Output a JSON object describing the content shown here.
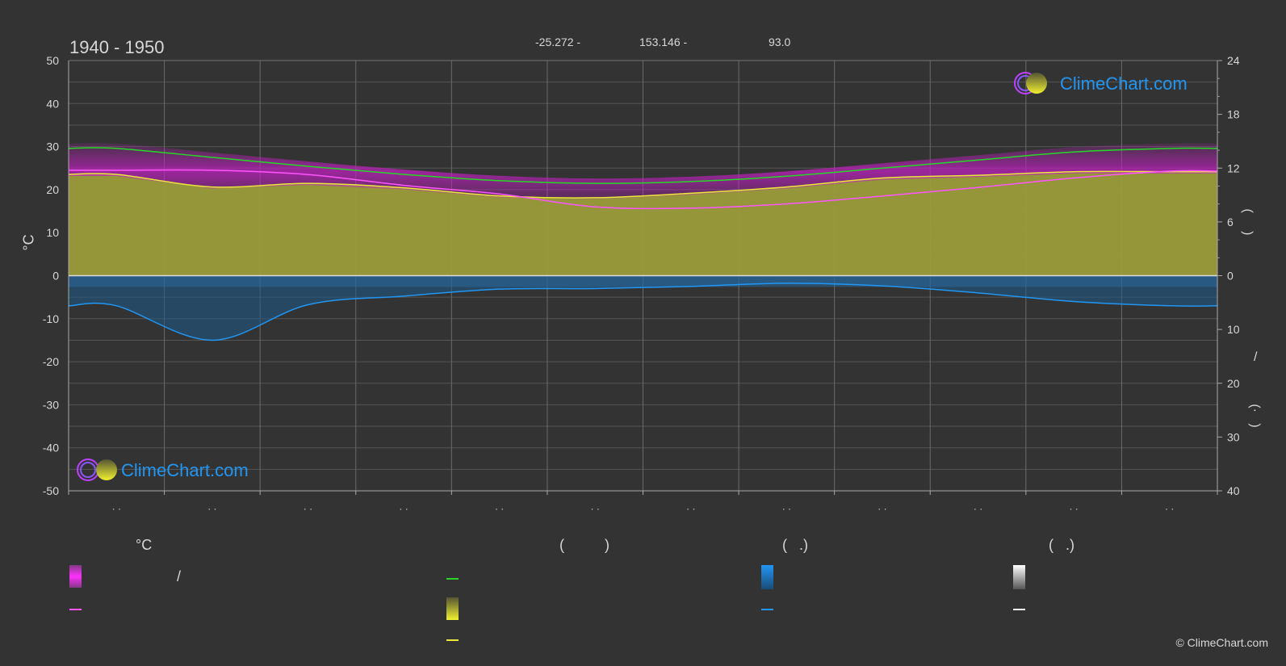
{
  "header": {
    "period": "1940 - 1950",
    "lat": "-25.272 -",
    "lon": "153.146 -",
    "elev": "93.0"
  },
  "axes": {
    "left_unit": "°C",
    "left_ticks": [
      "50",
      "40",
      "30",
      "20",
      "10",
      "0",
      "-10",
      "-20",
      "-30",
      "-40",
      "-50"
    ],
    "right_top_ticks": [
      "24",
      "18",
      "12",
      "6",
      "0"
    ],
    "right_bottom_ticks": [
      "10",
      "20",
      "30",
      "40"
    ],
    "right_top_label": "(     )",
    "right_bottom_label": "/",
    "right_bottom_label2": "(·   )",
    "month_labels": [
      "· ·",
      "· ·",
      "· ·",
      "· ·",
      "· ·",
      "· ·",
      "· ·",
      "· ·",
      "· ·",
      "· ·",
      "· ·",
      "· ·"
    ]
  },
  "brand": {
    "name": "ClimeChart.com",
    "copyright": "© ClimeChart.com",
    "color": "#2196f3"
  },
  "legend": {
    "col1_head": "°C",
    "col1_item1": "/",
    "col2_head": "(          )",
    "col3_head": "(   .)",
    "col4_head": "(   .)"
  },
  "colors": {
    "max_temp": "#ff55ff",
    "daylight": "#27d827",
    "sunshine": "#e9e93a",
    "precip": "#2196f3",
    "temp_band": "#c020c0",
    "sun_fill": "#9b9b3a"
  },
  "chart_data": {
    "type": "area",
    "x": [
      "Jan",
      "Feb",
      "Mar",
      "Apr",
      "May",
      "Jun",
      "Jul",
      "Aug",
      "Sep",
      "Oct",
      "Nov",
      "Dec"
    ],
    "ylim": [
      -50,
      50
    ],
    "y2_sun_lim": [
      0,
      24
    ],
    "y2_precip_lim": [
      0,
      40
    ],
    "series": [
      {
        "key": "daylight",
        "axis": "sun_hours",
        "values": [
          14.2,
          13.2,
          12.2,
          11.3,
          10.6,
          10.3,
          10.5,
          11.1,
          12.0,
          12.9,
          13.8,
          14.2
        ]
      },
      {
        "key": "sunshine",
        "axis": "sun_hours",
        "values": [
          11.3,
          9.9,
          10.3,
          9.8,
          8.9,
          8.7,
          9.2,
          9.9,
          10.9,
          11.2,
          11.6,
          11.6
        ]
      },
      {
        "key": "max_temp",
        "axis": "temperature",
        "values": [
          24.5,
          24.5,
          23.5,
          21.0,
          19.0,
          16.0,
          15.7,
          16.7,
          18.5,
          20.5,
          22.7,
          24.3
        ]
      },
      {
        "key": "precip",
        "axis": "precip_mm",
        "values": [
          5.6,
          12.0,
          5.4,
          3.8,
          2.5,
          2.4,
          2.0,
          1.4,
          1.9,
          3.2,
          4.8,
          5.6
        ]
      }
    ]
  }
}
